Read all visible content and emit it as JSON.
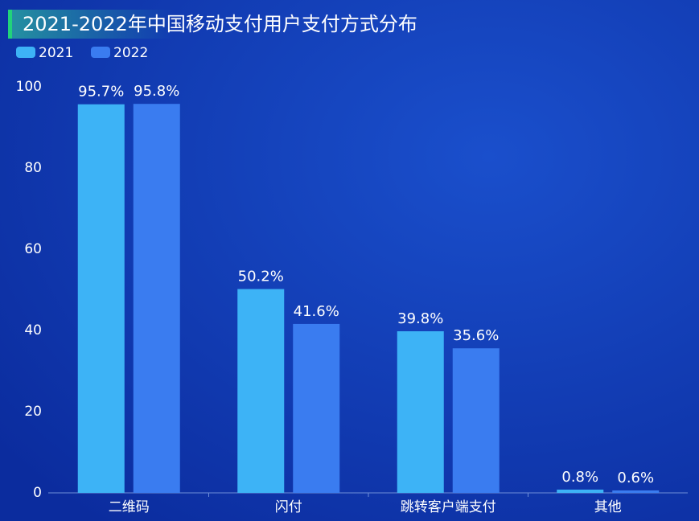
{
  "chart_data": {
    "type": "bar",
    "title": "2021-2022年中国移动支付用户支付方式分布",
    "categories": [
      "二维码",
      "闪付",
      "跳转客户端支付",
      "其他"
    ],
    "series": [
      {
        "name": "2021",
        "color": "#3db3f6",
        "values": [
          95.7,
          50.2,
          39.8,
          0.8
        ],
        "value_labels": [
          "95.7%",
          "50.2%",
          "39.8%",
          "0.8%"
        ]
      },
      {
        "name": "2022",
        "color": "#3a7cf0",
        "values": [
          95.8,
          41.6,
          35.6,
          0.6
        ],
        "value_labels": [
          "95.8%",
          "41.6%",
          "35.6%",
          "0.6%"
        ]
      }
    ],
    "ylim": [
      0,
      100
    ],
    "yticks": [
      0,
      20,
      40,
      60,
      80,
      100
    ],
    "grid": false,
    "legend": "top-left"
  }
}
